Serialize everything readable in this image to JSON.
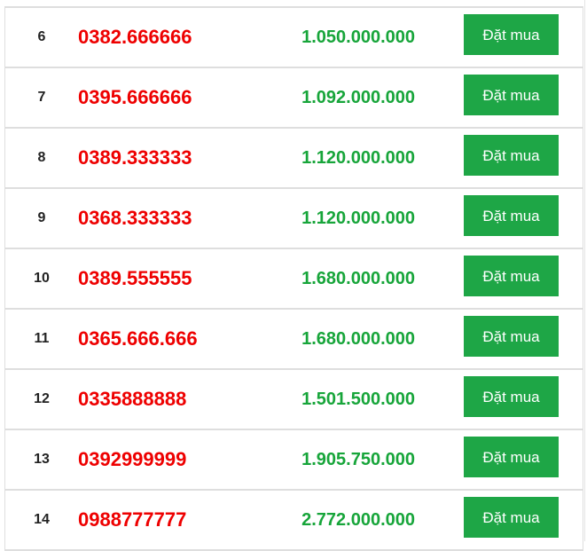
{
  "button_label": "Đặt mua",
  "colors": {
    "phone": "#ee0000",
    "price": "#17a53a",
    "button": "#1ea646"
  },
  "rows": [
    {
      "index": "6",
      "phone": "0382.666666",
      "price": "1.050.000.000"
    },
    {
      "index": "7",
      "phone": "0395.666666",
      "price": "1.092.000.000"
    },
    {
      "index": "8",
      "phone": "0389.333333",
      "price": "1.120.000.000"
    },
    {
      "index": "9",
      "phone": "0368.333333",
      "price": "1.120.000.000"
    },
    {
      "index": "10",
      "phone": "0389.555555",
      "price": "1.680.000.000"
    },
    {
      "index": "11",
      "phone": "0365.666.666",
      "price": "1.680.000.000"
    },
    {
      "index": "12",
      "phone": "0335888888",
      "price": "1.501.500.000"
    },
    {
      "index": "13",
      "phone": "0392999999",
      "price": "1.905.750.000"
    },
    {
      "index": "14",
      "phone": "0988777777",
      "price": "2.772.000.000"
    }
  ]
}
